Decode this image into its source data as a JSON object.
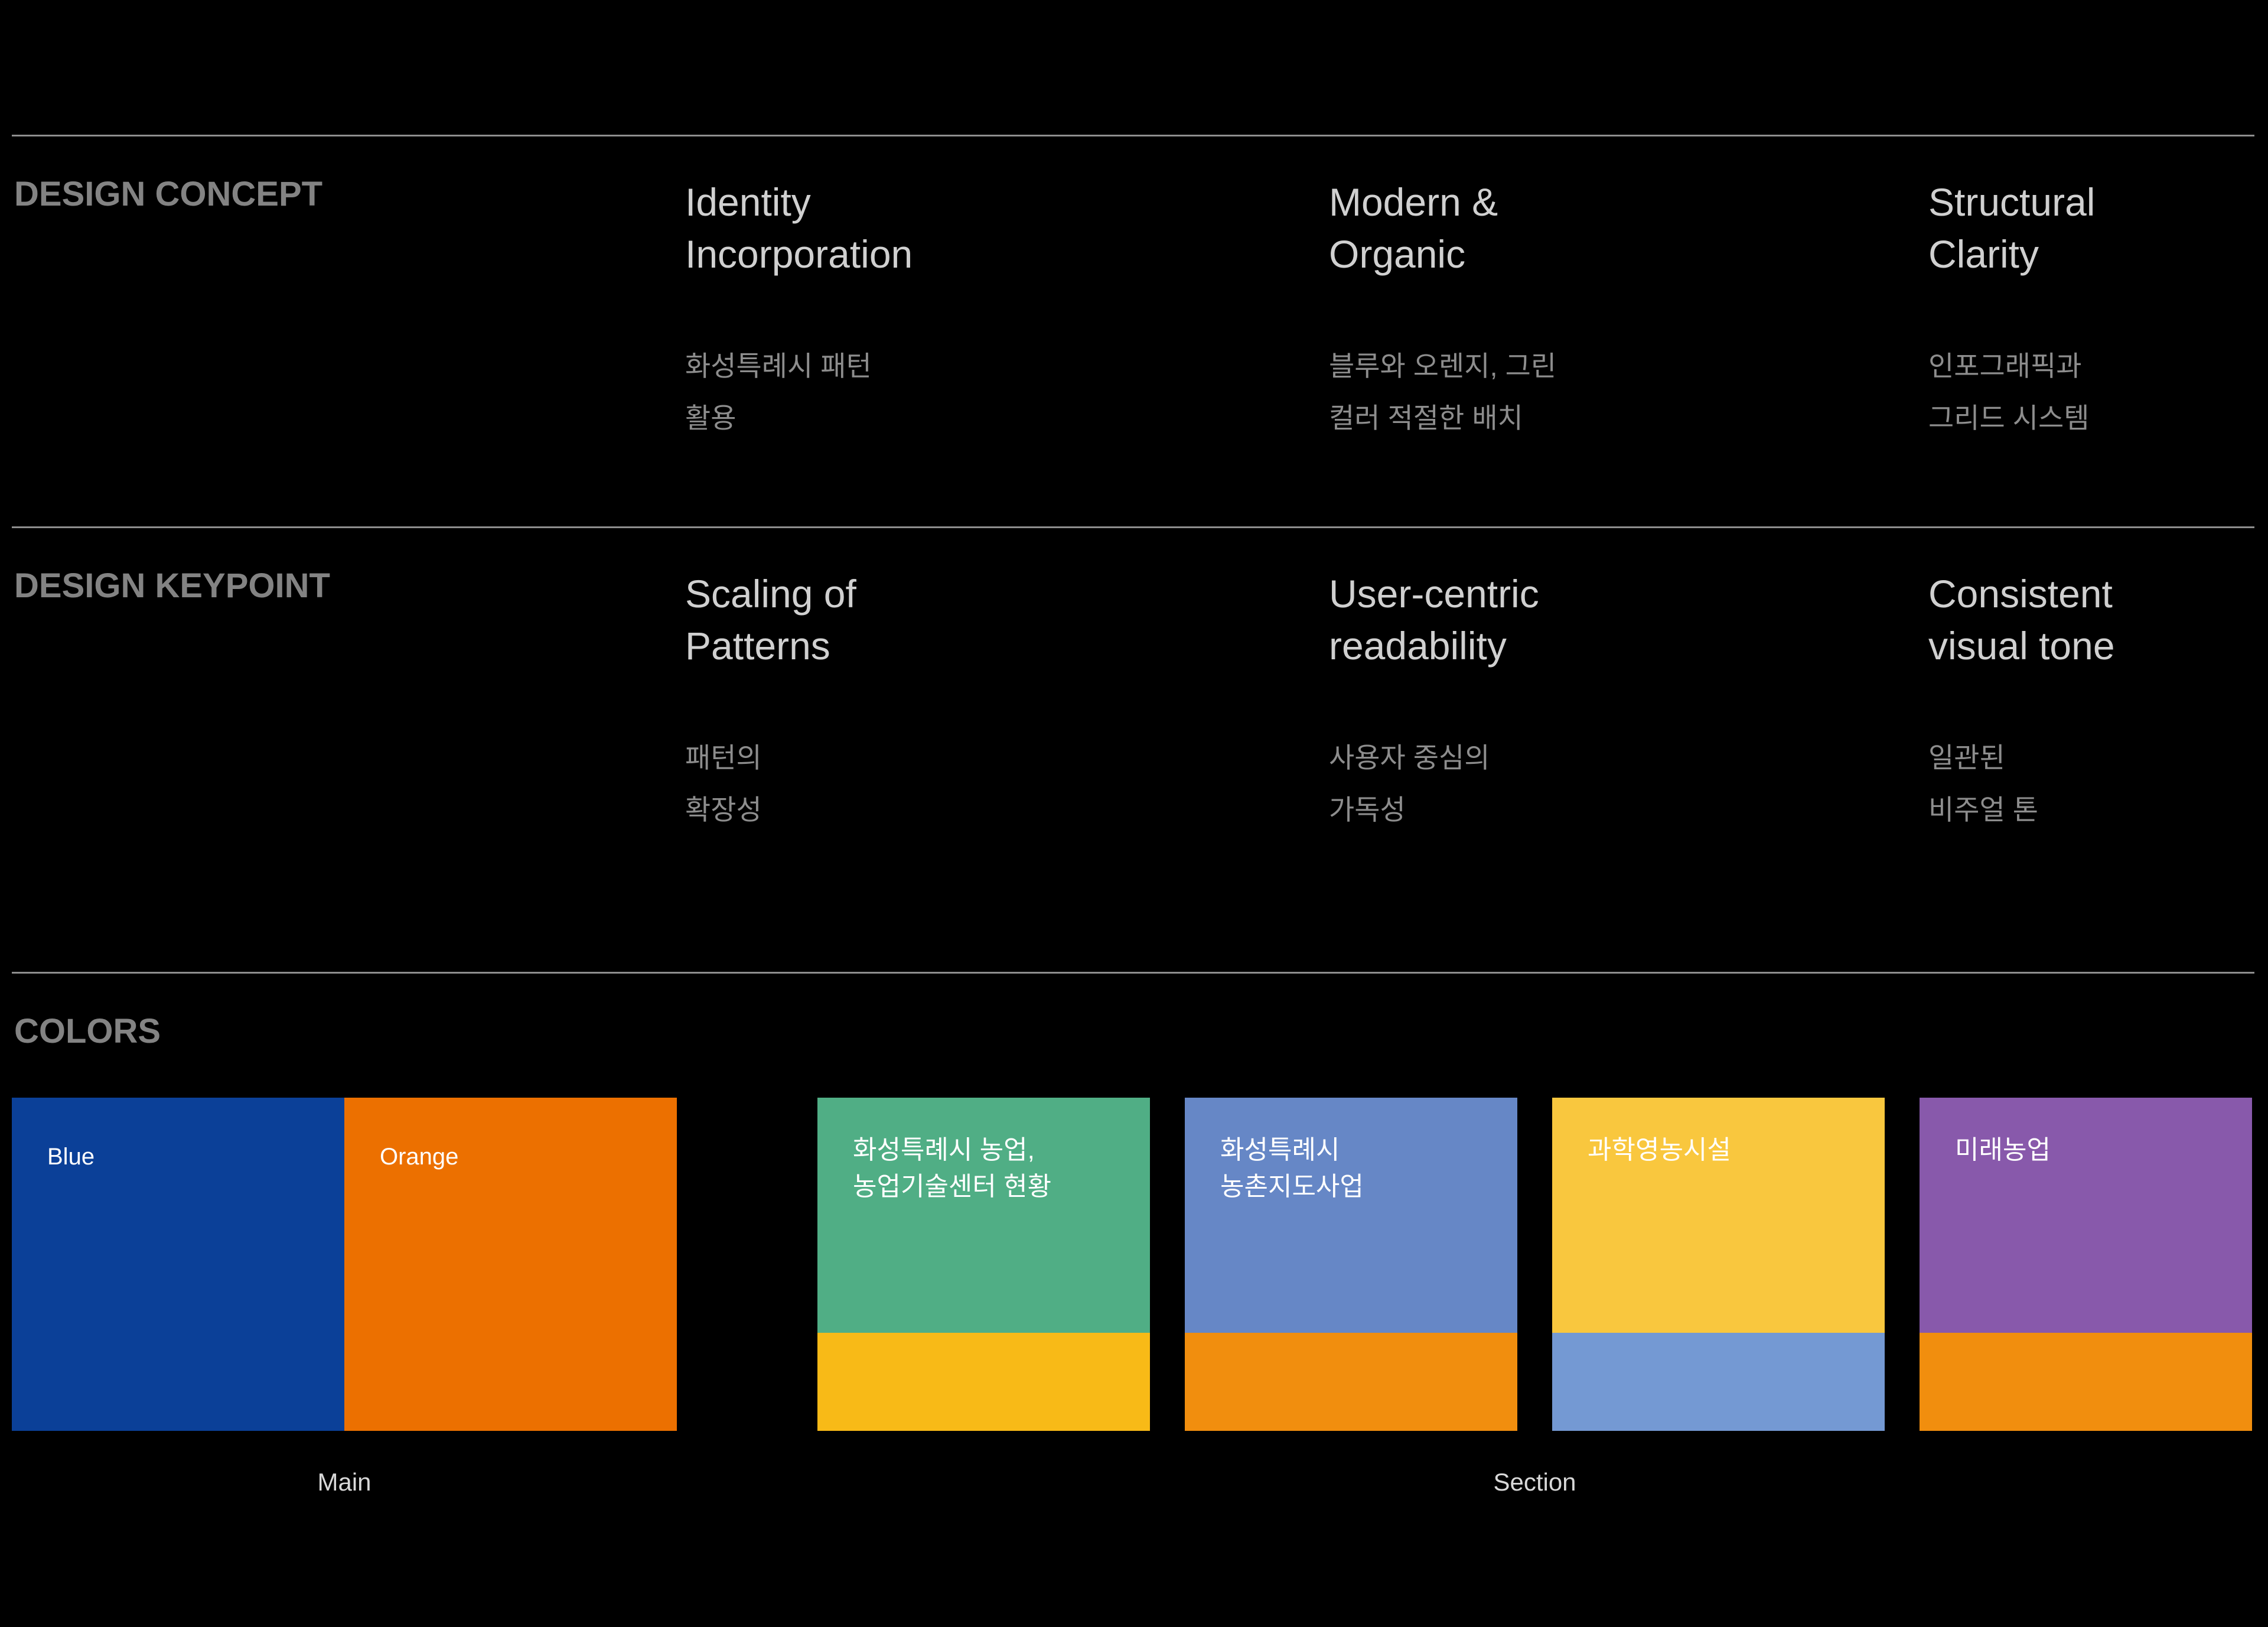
{
  "sections": [
    {
      "heading": "DESIGN CONCEPT",
      "items": [
        {
          "title": [
            "Identity",
            "Incorporation"
          ],
          "subtitle": [
            "화성특례시 패턴",
            "활용"
          ]
        },
        {
          "title": [
            "Modern &",
            "Organic"
          ],
          "subtitle": [
            "블루와 오렌지, 그린",
            "컬러 적절한 배치"
          ]
        },
        {
          "title": [
            "Structural",
            "Clarity"
          ],
          "subtitle": [
            "인포그래픽과",
            "그리드 시스템"
          ]
        }
      ]
    },
    {
      "heading": "DESIGN KEYPOINT",
      "items": [
        {
          "title": [
            "Scaling of",
            "Patterns"
          ],
          "subtitle": [
            "패턴의",
            "확장성"
          ]
        },
        {
          "title": [
            "User-centric",
            "readability"
          ],
          "subtitle": [
            "사용자 중심의",
            "가독성"
          ]
        },
        {
          "title": [
            "Consistent",
            "visual tone"
          ],
          "subtitle": [
            "일관된",
            "비주얼 톤"
          ]
        }
      ]
    }
  ],
  "colors": {
    "heading": "COLORS",
    "main": {
      "caption": "Main",
      "swatches": [
        {
          "name": "Blue",
          "hex": "#0b4098"
        },
        {
          "name": "Orange",
          "hex": "#ec7000"
        }
      ]
    },
    "section": {
      "caption": "Section",
      "swatches": [
        {
          "lines": [
            "화성특례시 농업,",
            "농업기술센터 현황"
          ],
          "hex": "#50ae85",
          "strip_hex": "#f8ba17"
        },
        {
          "lines": [
            "화성특례시",
            "농촌지도사업"
          ],
          "hex": "#6687c6",
          "strip_hex": "#f18e0e"
        },
        {
          "lines": [
            "과학영농시설"
          ],
          "hex": "#f9c73e",
          "strip_hex": "#7499d3"
        },
        {
          "lines": [
            "미래농업"
          ],
          "hex": "#8859ab",
          "strip_hex": "#f18e0e"
        }
      ]
    }
  }
}
